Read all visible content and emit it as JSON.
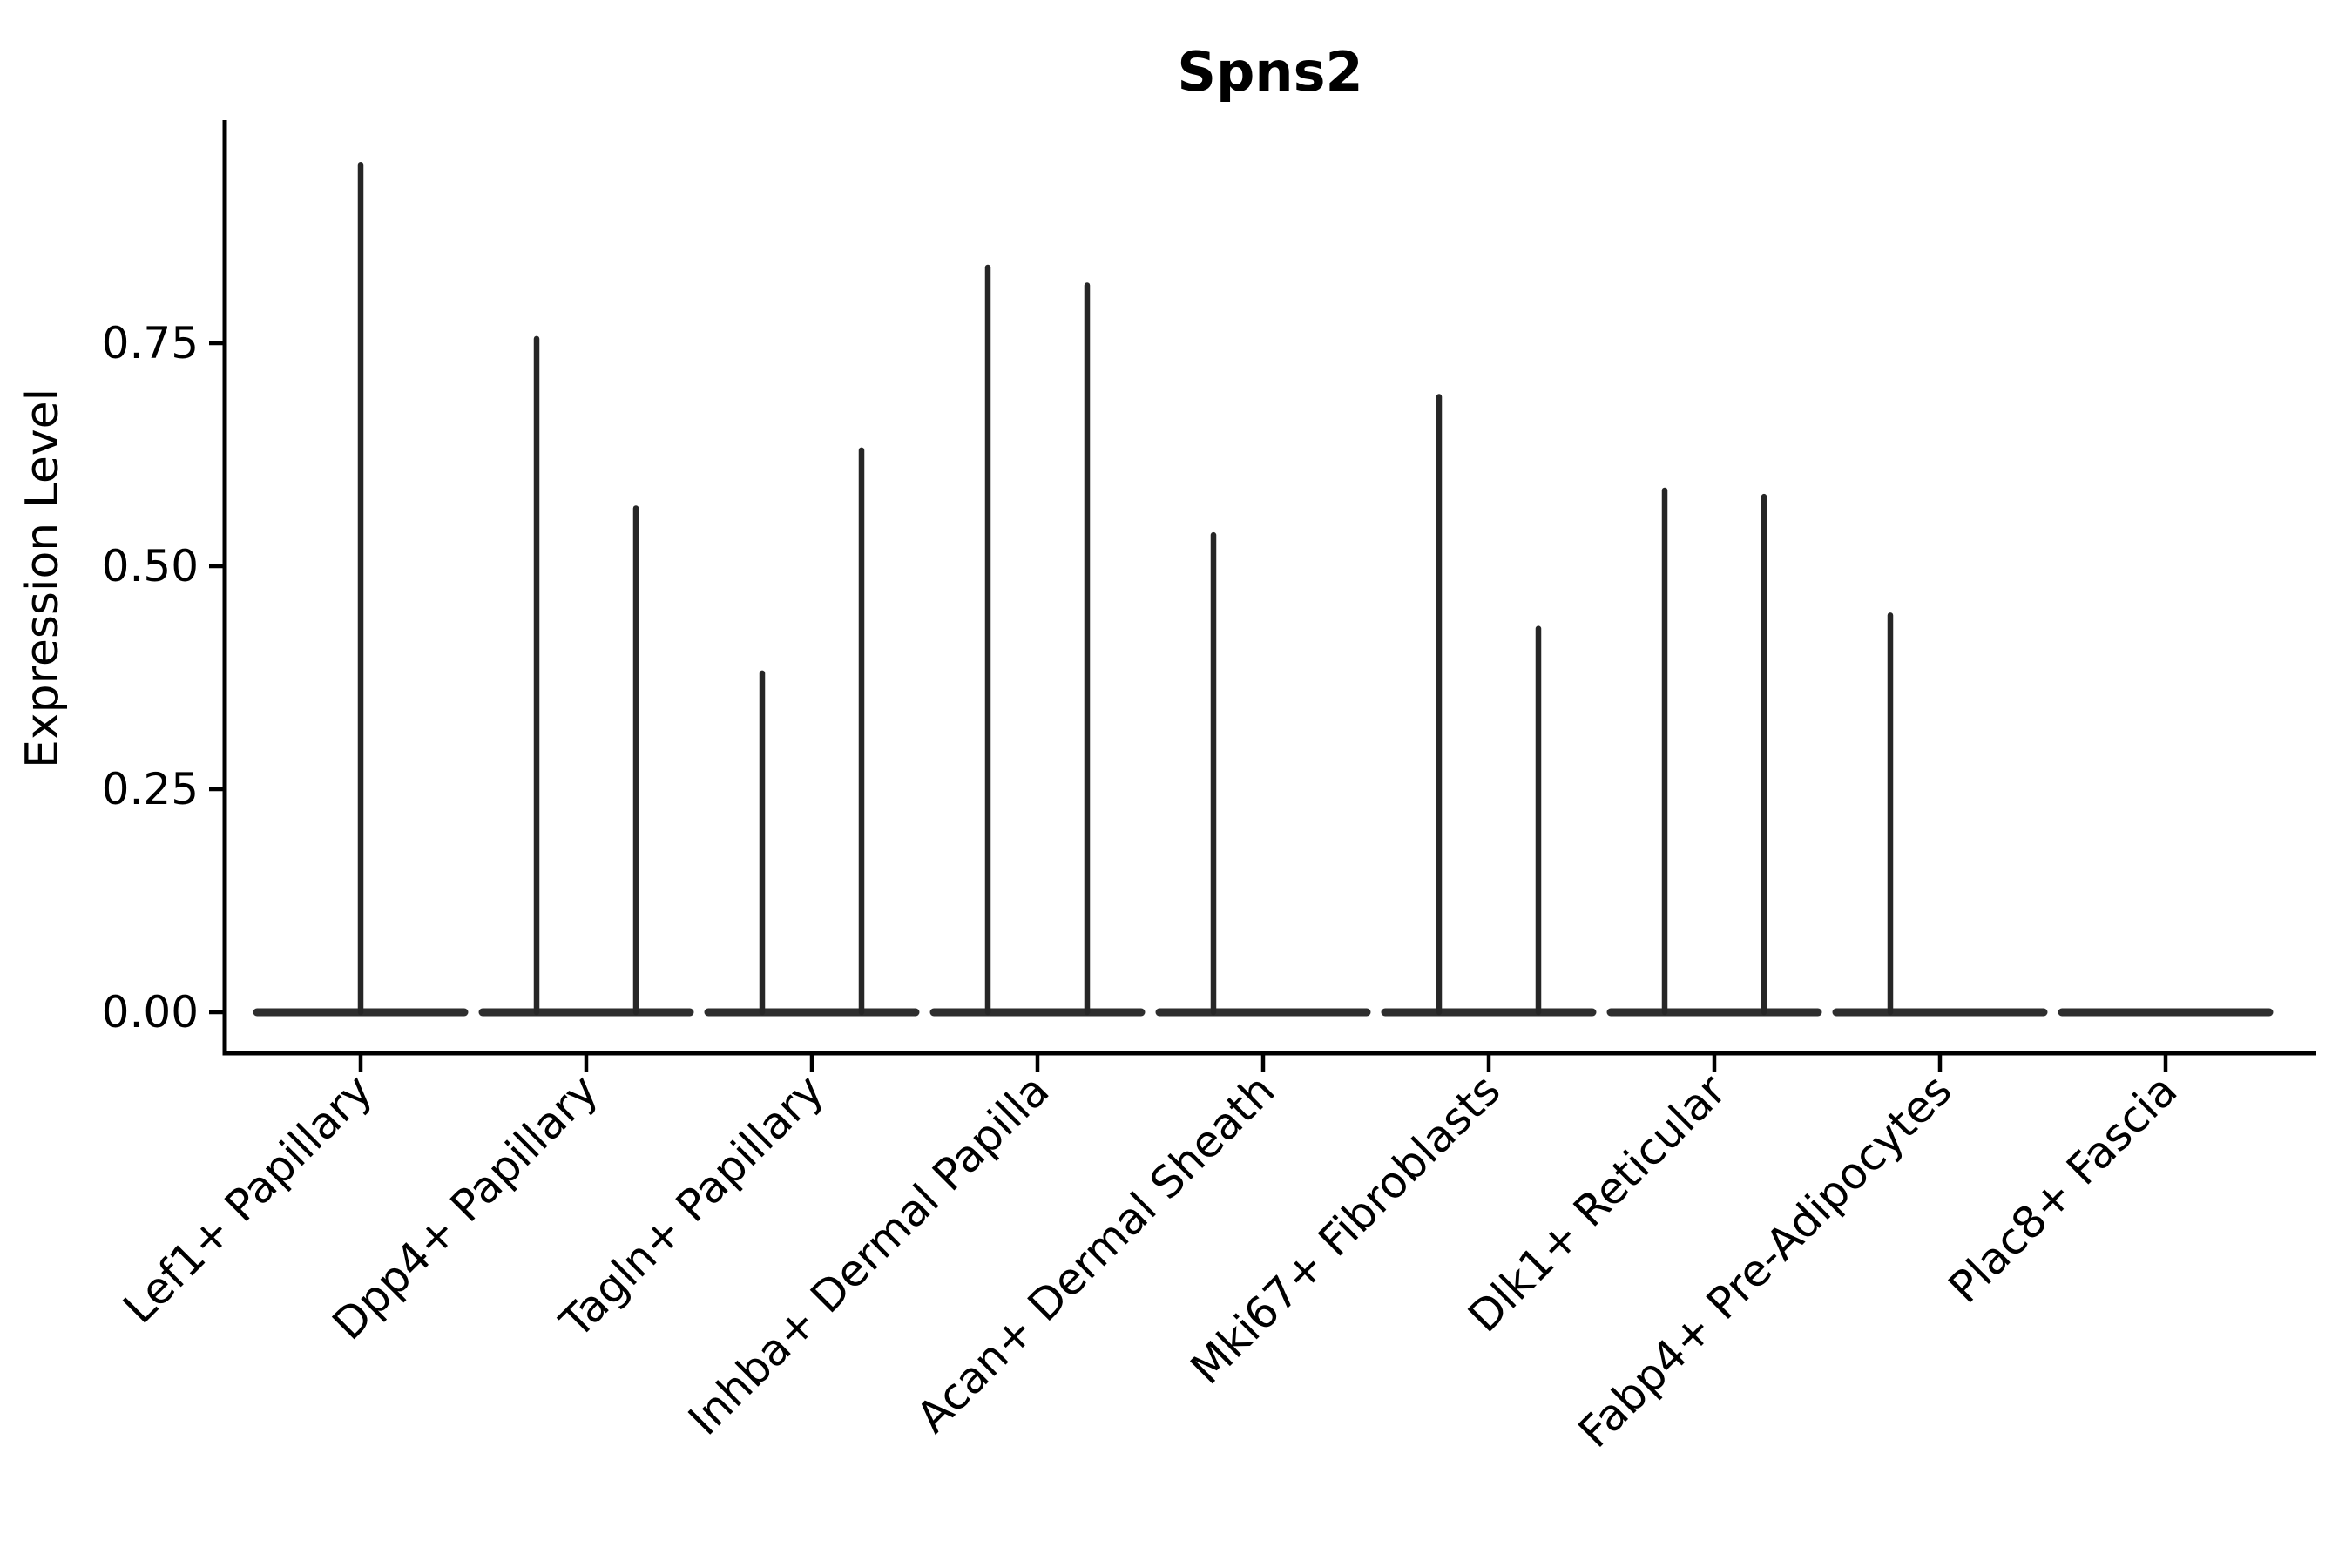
{
  "chart_data": {
    "type": "violin",
    "title": "Spns2",
    "ylabel": "Expression Level",
    "xlabel": "",
    "ylim": [
      0,
      1.0
    ],
    "yticks": [
      "0.00",
      "0.25",
      "0.50",
      "0.75"
    ],
    "ytick_values": [
      0.0,
      0.25,
      0.5,
      0.75
    ],
    "grid": false,
    "legend": "none",
    "background": "#ffffff",
    "axis_color": "#000000",
    "line_color": "#2e2e2e",
    "categories": [
      "Lef1+ Papillary",
      "Dpp4+ Papillary",
      "Tagln+ Papillary",
      "Inhba+ Dermal Papilla",
      "Acan+ Dermal Sheath",
      "Mki67+ Fibroblasts",
      "Dlk1+ Reticular",
      "Fabp4+ Pre-Adipocytes",
      "Plac8+ Fascia"
    ],
    "series": [
      {
        "category": "Lef1+ Papillary",
        "spikes": [
          {
            "position": "center",
            "max": 0.95
          }
        ]
      },
      {
        "category": "Dpp4+ Papillary",
        "spikes": [
          {
            "position": "left",
            "max": 0.755
          },
          {
            "position": "right",
            "max": 0.565
          }
        ]
      },
      {
        "category": "Tagln+ Papillary",
        "spikes": [
          {
            "position": "left",
            "max": 0.38
          },
          {
            "position": "right",
            "max": 0.63
          }
        ]
      },
      {
        "category": "Inhba+ Dermal Papilla",
        "spikes": [
          {
            "position": "left",
            "max": 0.835
          },
          {
            "position": "right",
            "max": 0.815
          }
        ]
      },
      {
        "category": "Acan+ Dermal Sheath",
        "spikes": [
          {
            "position": "left",
            "max": 0.535
          }
        ]
      },
      {
        "category": "Mki67+ Fibroblasts",
        "spikes": [
          {
            "position": "left",
            "max": 0.69
          },
          {
            "position": "right",
            "max": 0.43
          }
        ]
      },
      {
        "category": "Dlk1+ Reticular",
        "spikes": [
          {
            "position": "left",
            "max": 0.585
          },
          {
            "position": "right",
            "max": 0.578
          }
        ]
      },
      {
        "category": "Fabp4+ Pre-Adipocytes",
        "spikes": [
          {
            "position": "left",
            "max": 0.445
          }
        ]
      },
      {
        "category": "Plac8+ Fascia",
        "spikes": []
      }
    ]
  }
}
